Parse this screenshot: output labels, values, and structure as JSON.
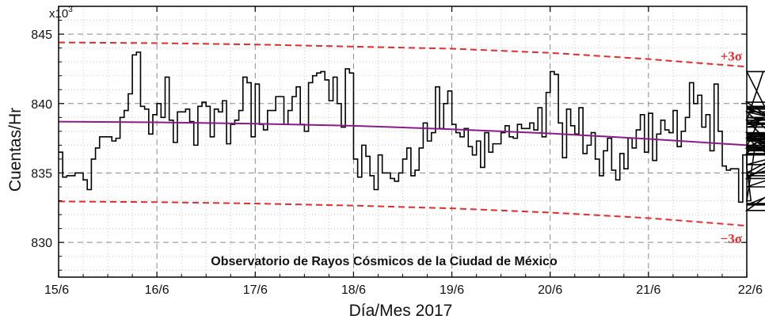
{
  "chart_data": {
    "type": "line",
    "title": "",
    "xlabel": "Día/Mes 2017",
    "ylabel": "Cuentas/Hr",
    "y_multiplier_base": "x10",
    "y_multiplier_exp": "3",
    "annotation": "Observatorio de Rayos Cósmicos de la Ciudad de México",
    "xlim": [
      0,
      7
    ],
    "ylim": [
      827.5,
      847
    ],
    "x_ticks": [
      {
        "value": 0,
        "label": "15/6"
      },
      {
        "value": 1,
        "label": "16/6"
      },
      {
        "value": 2,
        "label": "17/6"
      },
      {
        "value": 3,
        "label": "18/6"
      },
      {
        "value": 4,
        "label": "19/6"
      },
      {
        "value": 5,
        "label": "20/6"
      },
      {
        "value": 6,
        "label": "21/6"
      },
      {
        "value": 7,
        "label": "22/6"
      }
    ],
    "y_ticks": [
      {
        "value": 830,
        "label": "830"
      },
      {
        "value": 835,
        "label": "835"
      },
      {
        "value": 840,
        "label": "840"
      },
      {
        "value": 845,
        "label": "845"
      }
    ],
    "grid": true,
    "series": [
      {
        "name": "",
        "style": "step",
        "color": "#000000",
        "x_step": 0.04167,
        "values": [
          836.5,
          834.7,
          834.8,
          834.8,
          835.0,
          835.0,
          834.5,
          833.8,
          836.0,
          836.8,
          837.6,
          837.6,
          837.6,
          837.3,
          837.5,
          839.0,
          839.5,
          840.7,
          843.5,
          843.7,
          839.8,
          839.6,
          837.8,
          839.2,
          840.0,
          839.0,
          841.9,
          838.8,
          837.2,
          839.4,
          839.4,
          839.6,
          838.7,
          837.0,
          839.8,
          840.1,
          839.8,
          837.6,
          839.6,
          839.4,
          840.2,
          837.1,
          838.5,
          838.8,
          839.5,
          841.9,
          841.5,
          837.6,
          841.4,
          838.5,
          838.1,
          839.5,
          839.5,
          840.5,
          840.5,
          838.5,
          839.5,
          840.5,
          841.2,
          838.5,
          838.0,
          841.5,
          842.0,
          842.2,
          842.3,
          841.7,
          840.2,
          841.9,
          840.0,
          838.3,
          842.5,
          842.2,
          836.0,
          834.7,
          837.0,
          836.2,
          834.8,
          833.8,
          836.3,
          835.0,
          835.0,
          834.6,
          834.4,
          835.0,
          836.0,
          836.8,
          834.8,
          835.2,
          836.8,
          838.6,
          837.3,
          837.9,
          841.2,
          838.2,
          840.0,
          840.9,
          838.5,
          837.9,
          837.6,
          838.2,
          836.9,
          836.3,
          837.3,
          835.4,
          837.9,
          836.5,
          837.1,
          837.1,
          837.9,
          838.4,
          837.6,
          837.5,
          838.5,
          838.2,
          838.2,
          838.6,
          838.1,
          839.7,
          837.6,
          840.8,
          842.3,
          842.1,
          838.6,
          836.1,
          839.6,
          838.4,
          837.8,
          839.7,
          836.4,
          837.0,
          837.9,
          836.0,
          834.8,
          836.6,
          837.5,
          835.2,
          834.5,
          836.4,
          835.3,
          837.5,
          836.8,
          838.1,
          839.2,
          836.5,
          839.3,
          835.9,
          837.8,
          838.8,
          838.1,
          837.9,
          839.5,
          836.9,
          838.0,
          839.0,
          841.5,
          840.0,
          840.6,
          838.3,
          839.2,
          836.6,
          841.4,
          838.0,
          835.5,
          835.2,
          835.3,
          835.3,
          832.9,
          836.3,
          835.4,
          833.0,
          836.9,
          838.8,
          842.3,
          839.4,
          839.0,
          838.8,
          836.4,
          839.4,
          836.8,
          838.6,
          839.7,
          839.8,
          839.7,
          837.9,
          835.0,
          837.7,
          837.6,
          834.6,
          838.3,
          839.6,
          837.5,
          832.3,
          837.4,
          835.6,
          837.6,
          834.8,
          836.9,
          836.3,
          836.7,
          836.6,
          837.3,
          837.3,
          837.0,
          834.0,
          837.5,
          840.1,
          832.8,
          832.7,
          837.5,
          837.4,
          837.8,
          838.3,
          838.5,
          842.3
        ]
      },
      {
        "name": "",
        "style": "smooth",
        "color": "#8b1a8b",
        "x": [
          0,
          1,
          2,
          3,
          4,
          5,
          6,
          7
        ],
        "values": [
          838.7,
          838.65,
          838.55,
          838.4,
          838.15,
          837.85,
          837.45,
          837.0
        ]
      },
      {
        "name": "+3σ",
        "style": "dashed",
        "color": "#e52b2b",
        "x": [
          0,
          1,
          2,
          3,
          4,
          5,
          6,
          7
        ],
        "values": [
          844.4,
          844.35,
          844.25,
          844.1,
          843.95,
          843.65,
          843.2,
          842.65
        ]
      },
      {
        "name": "−3σ",
        "style": "dashed",
        "color": "#e52b2b",
        "x": [
          0,
          1,
          2,
          3,
          4,
          5,
          6,
          7
        ],
        "values": [
          832.95,
          832.9,
          832.8,
          832.65,
          832.45,
          832.15,
          831.75,
          831.2
        ]
      }
    ]
  }
}
